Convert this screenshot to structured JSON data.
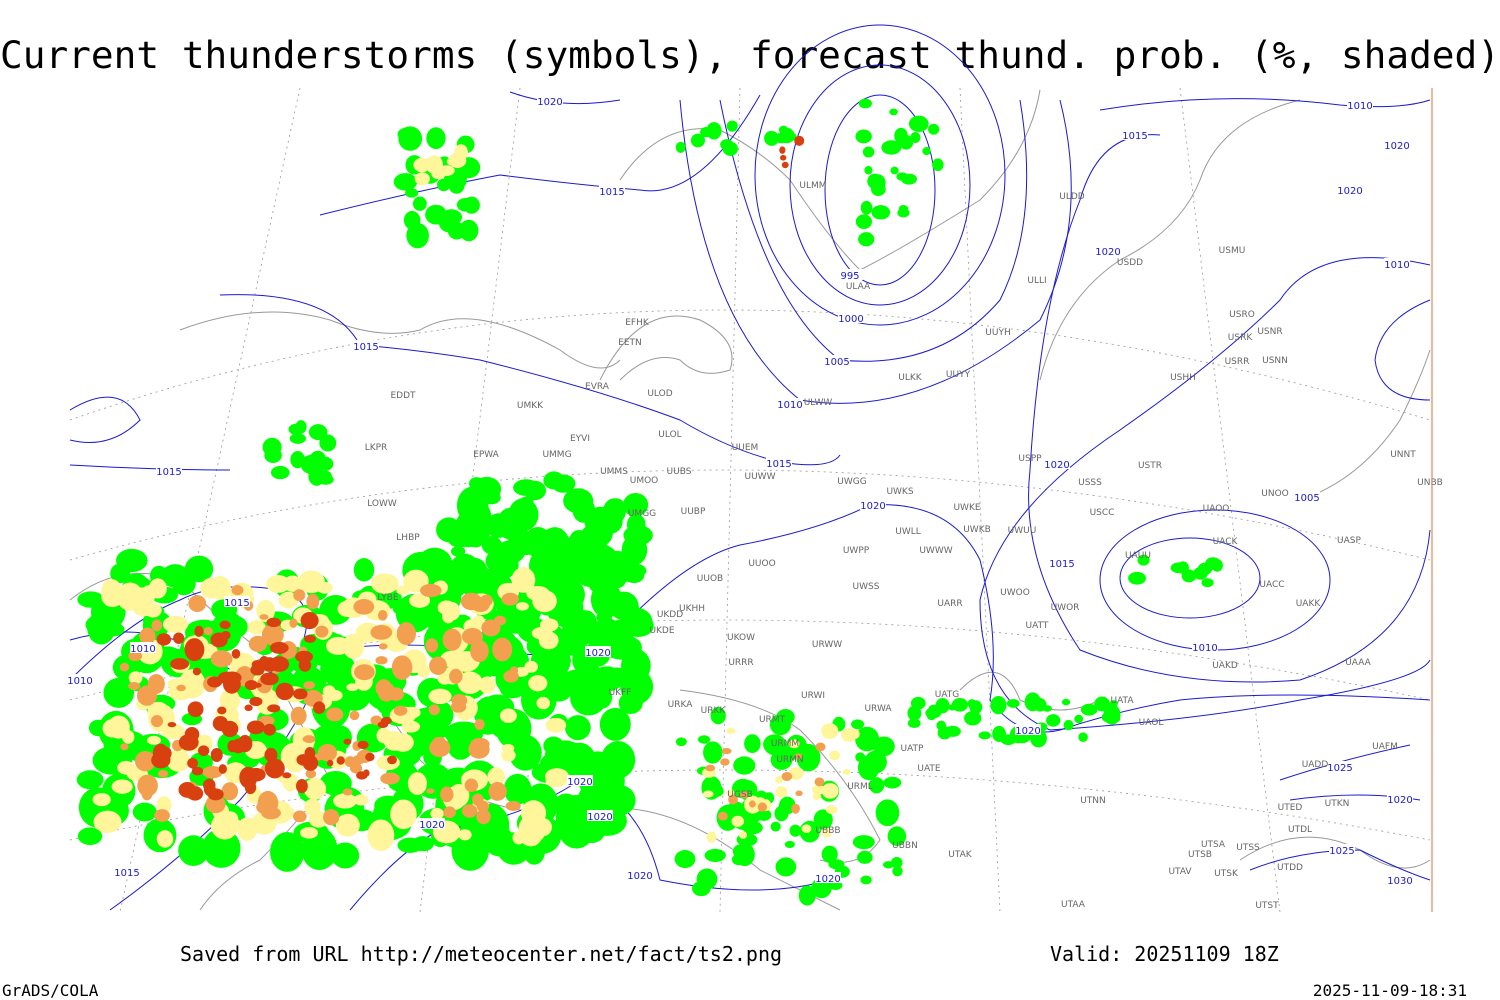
{
  "header": {
    "title": "Current thunderstorms (symbols), forecast thund. prob. (%, shaded)"
  },
  "footer": {
    "source": "Saved from URL http://meteocenter.net/fact/ts2.png",
    "valid": "Valid: 20251109 18Z",
    "software": "GrADS/COLA",
    "timestamp": "2025-11-09-18:31"
  },
  "isobar_labels": [
    "1020",
    "1015",
    "1015",
    "1015",
    "1015",
    "1010",
    "1010",
    "1015",
    "1020",
    "1020",
    "1020",
    "1020",
    "1020",
    "1020",
    "1015",
    "1010",
    "1005",
    "1000",
    "995",
    "1020",
    "1020",
    "1020",
    "1015",
    "1010",
    "1020",
    "1020",
    "1010",
    "1005",
    "1015",
    "1010",
    "1020",
    "1025",
    "1020",
    "1025",
    "1030"
  ],
  "stations": [
    "ULMM",
    "ULDD",
    "USDD",
    "USMU",
    "ULAA",
    "ULLI",
    "EFHK",
    "EETN",
    "USRO",
    "USRK",
    "USNR",
    "USRR",
    "USNN",
    "ULWW",
    "ULOD",
    "EVRA",
    "ULKK",
    "UUYY",
    "UUYH",
    "USHH",
    "EDDT",
    "UMKK",
    "ULOL",
    "EYVI",
    "UUEM",
    "LKPR",
    "EPWA",
    "UMMG",
    "UMMS",
    "UMOO",
    "UUBS",
    "UUWW",
    "UWGG",
    "UWKS",
    "USPP",
    "USTR",
    "USSS",
    "UNNT",
    "UNBB",
    "LOWW",
    "UMGG",
    "UUBP",
    "UWKE",
    "UWKB",
    "UWUU",
    "USCC",
    "UAOO",
    "UNOO",
    "LHBP",
    "UWLL",
    "UWWW",
    "UACK",
    "UASP",
    "UWPP",
    "UAUU",
    "UUOO",
    "UUOB",
    "UWSS",
    "UARR",
    "UWOO",
    "UWOR",
    "UACC",
    "UAKK",
    "UKDD",
    "UKHH",
    "UKDE",
    "URWW",
    "UATT",
    "UKOW",
    "URRR",
    "LYBE",
    "UAKD",
    "UAAA",
    "UKFF",
    "URKA",
    "URKK",
    "URWI",
    "UATG",
    "URWA",
    "UATA",
    "UAOL",
    "URMT",
    "URMM",
    "URMN",
    "UATP",
    "UATE",
    "UAFM",
    "UADD",
    "URML",
    "UGSB",
    "UTNN",
    "UTED",
    "UTKN",
    "UBBB",
    "UTDL",
    "UTAK",
    "UTSA",
    "UTSS",
    "UTSB",
    "UBBN",
    "UTAV",
    "UTSK",
    "UTDD",
    "UTAA",
    "UTST"
  ]
}
